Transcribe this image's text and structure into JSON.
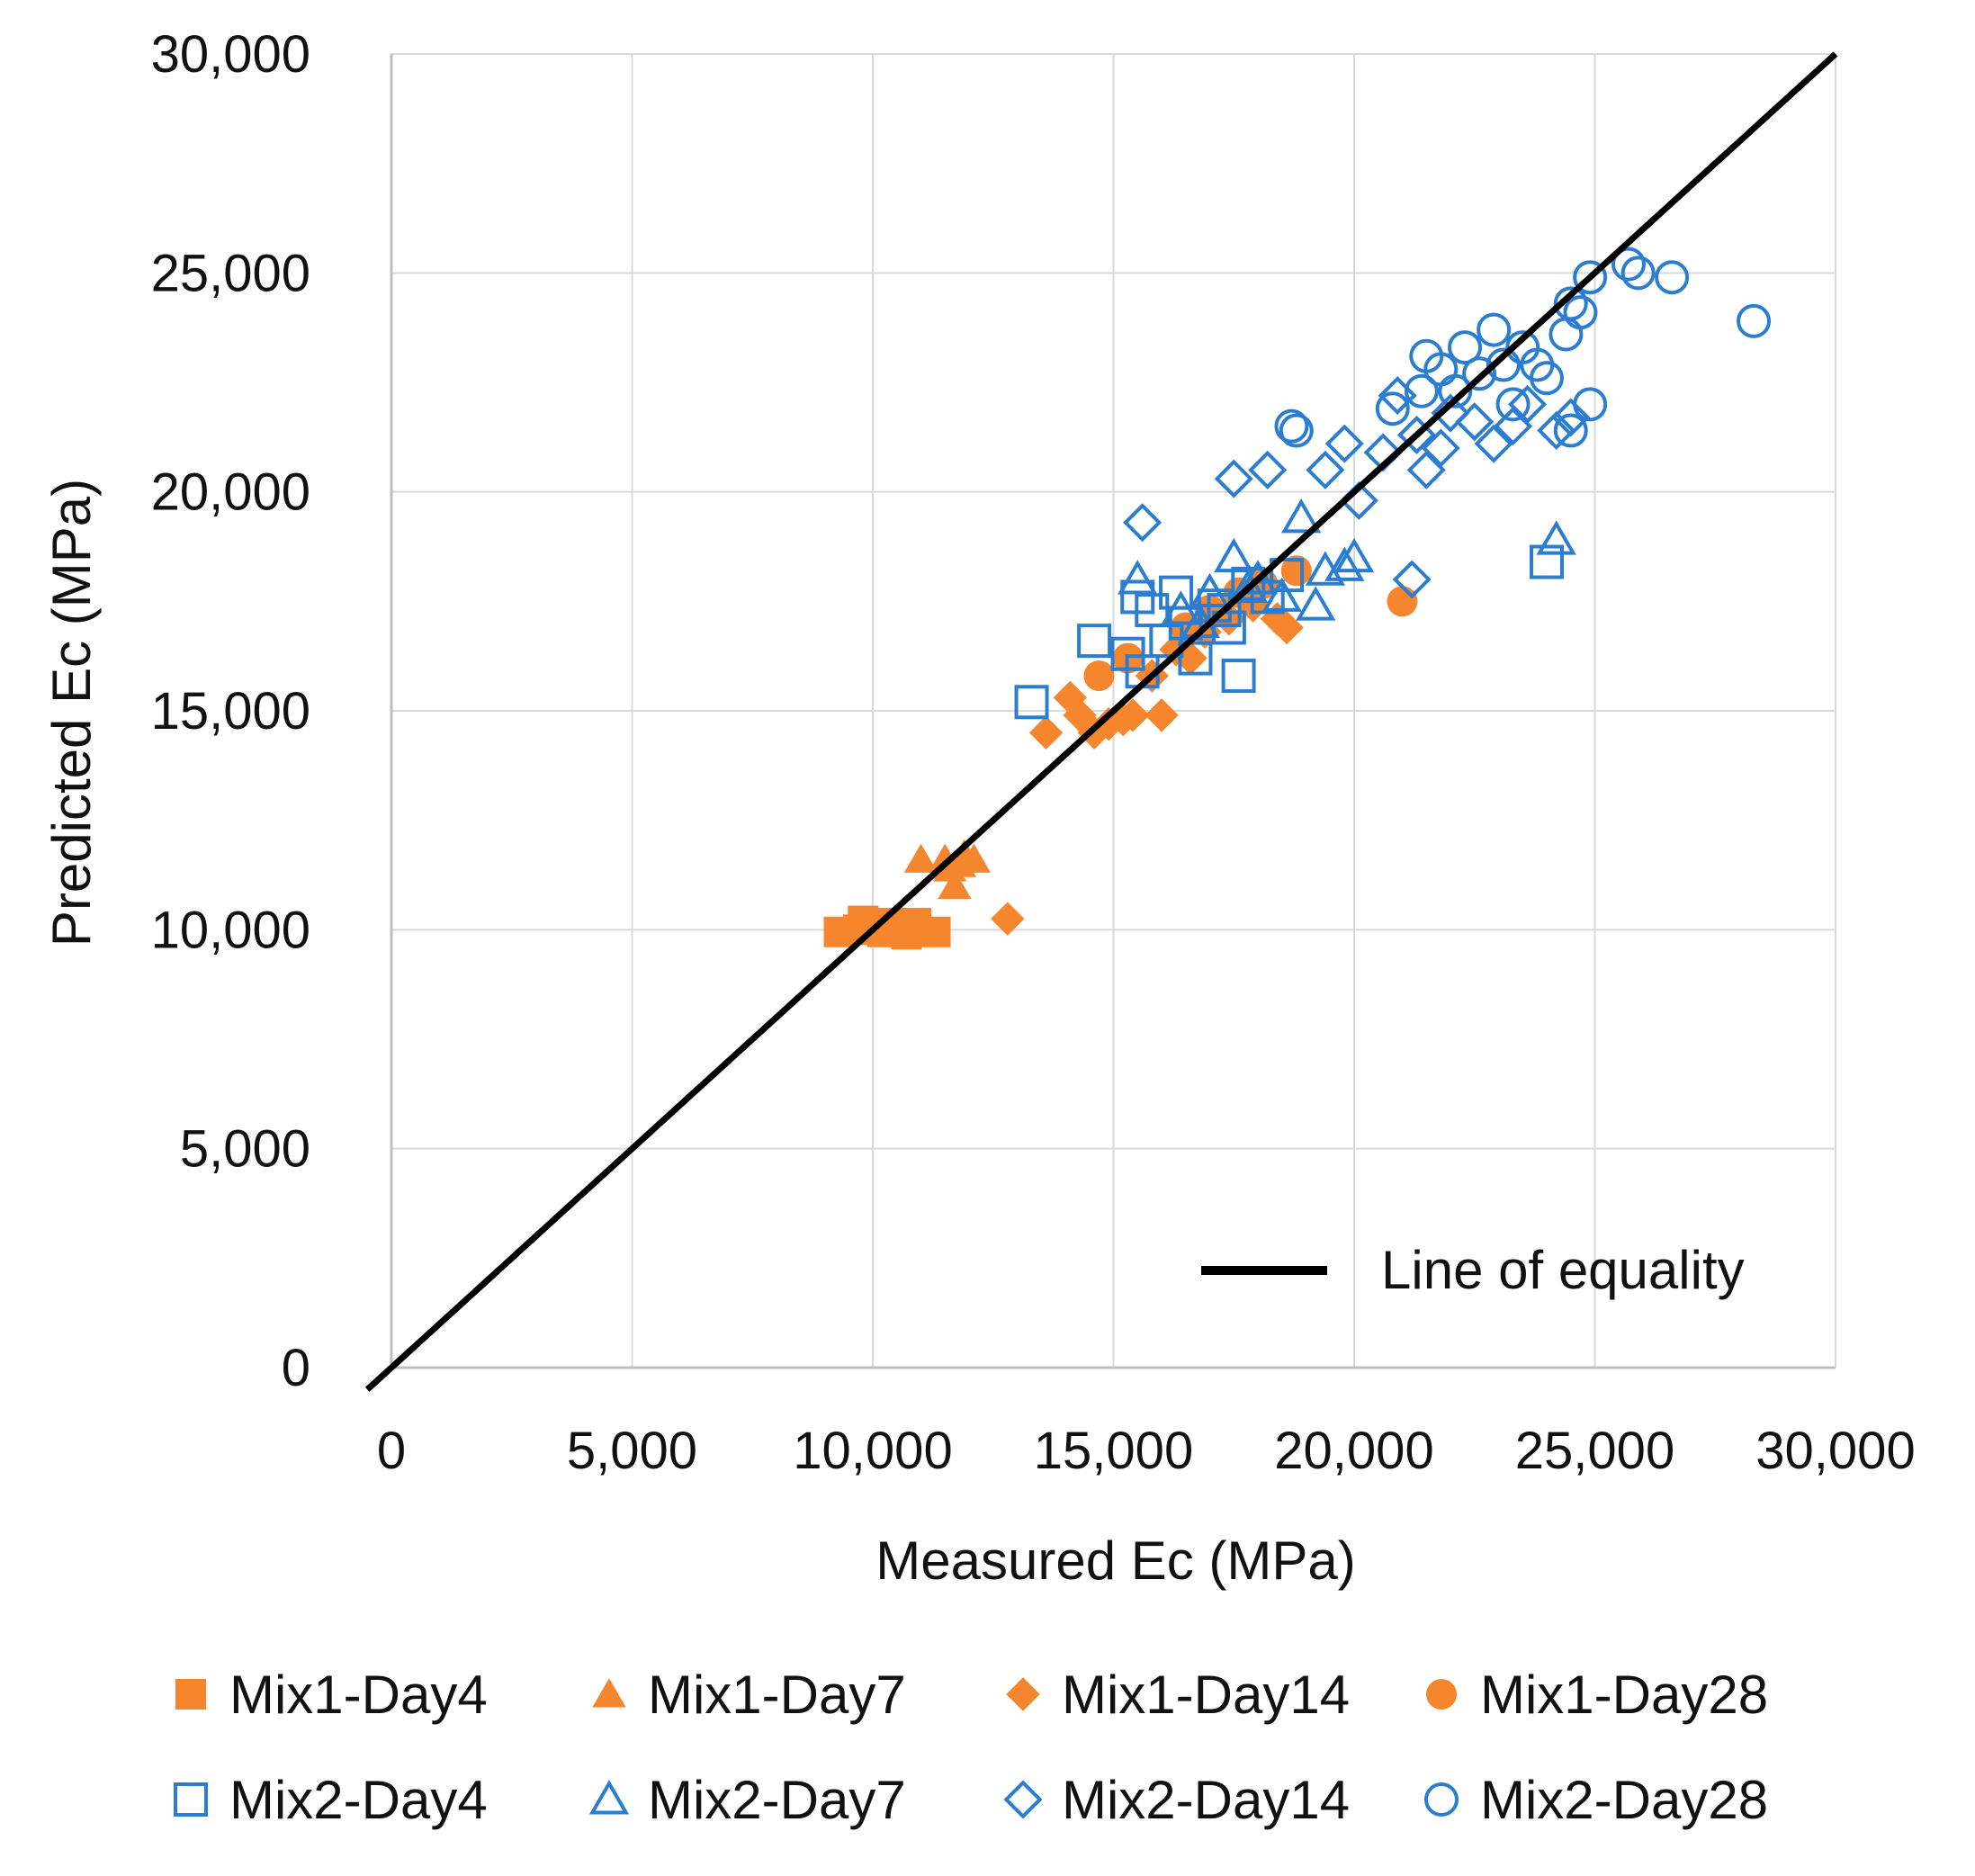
{
  "chart_data": {
    "type": "scatter",
    "title": "",
    "xlabel": "Measured Ec (MPa)",
    "ylabel": "Predicted Ec (MPa)",
    "xlim": [
      0,
      30000
    ],
    "ylim": [
      0,
      30000
    ],
    "xticks": [
      0,
      5000,
      10000,
      15000,
      20000,
      25000,
      30000
    ],
    "xtick_labels": [
      "0",
      "5,000",
      "10,000",
      "15,000",
      "20,000",
      "25,000",
      "30,000"
    ],
    "yticks": [
      0,
      5000,
      10000,
      15000,
      20000,
      25000,
      30000
    ],
    "ytick_labels": [
      "0",
      "5,000",
      "10,000",
      "15,000",
      "20,000",
      "25,000",
      "30,000"
    ],
    "grid": true,
    "legend_position": "bottom",
    "reference_line": {
      "name": "Line of equality",
      "x": [
        -500,
        30000
      ],
      "y": [
        -500,
        30000
      ],
      "color": "#000000"
    },
    "colors": {
      "mix1": "#F5862E",
      "mix2": "#2A7DD1",
      "line": "#000000",
      "grid": "#D9D9D9"
    },
    "series": [
      {
        "name": "Mix1-Day4",
        "marker": "square",
        "filled": true,
        "color": "#F5862E",
        "points": [
          [
            9300,
            9950
          ],
          [
            9700,
            10000
          ],
          [
            10000,
            10100
          ],
          [
            10200,
            9950
          ],
          [
            10400,
            10150
          ],
          [
            10600,
            10000
          ],
          [
            10900,
            10150
          ],
          [
            11300,
            9950
          ],
          [
            9800,
            10200
          ],
          [
            10700,
            9900
          ]
        ]
      },
      {
        "name": "Mix1-Day7",
        "marker": "triangle",
        "filled": true,
        "color": "#F5862E",
        "points": [
          [
            11000,
            11600
          ],
          [
            11500,
            11600
          ],
          [
            11800,
            11500
          ],
          [
            12100,
            11600
          ],
          [
            11700,
            11000
          ],
          [
            11600,
            11400
          ],
          [
            11900,
            11700
          ]
        ]
      },
      {
        "name": "Mix1-Day14",
        "marker": "diamond",
        "filled": true,
        "color": "#F5862E",
        "points": [
          [
            12800,
            10250
          ],
          [
            13600,
            14500
          ],
          [
            14100,
            15300
          ],
          [
            14300,
            14900
          ],
          [
            14600,
            14500
          ],
          [
            14900,
            14700
          ],
          [
            15200,
            14800
          ],
          [
            15400,
            14900
          ],
          [
            16000,
            14900
          ],
          [
            15800,
            15800
          ],
          [
            16300,
            16400
          ],
          [
            16900,
            16800
          ],
          [
            17400,
            17100
          ],
          [
            17900,
            17400
          ],
          [
            18400,
            17100
          ],
          [
            18600,
            16900
          ],
          [
            16600,
            16200
          ]
        ]
      },
      {
        "name": "Mix1-Day28",
        "marker": "circle",
        "filled": true,
        "color": "#F5862E",
        "points": [
          [
            14700,
            15800
          ],
          [
            15300,
            16200
          ],
          [
            16500,
            16900
          ],
          [
            17000,
            17300
          ],
          [
            17600,
            17700
          ],
          [
            18100,
            17900
          ],
          [
            18800,
            18200
          ],
          [
            21000,
            17500
          ]
        ]
      },
      {
        "name": "Mix2-Day4",
        "marker": "square",
        "filled": false,
        "color": "#2A7DD1",
        "points": [
          [
            13300,
            15200
          ],
          [
            14600,
            16600
          ],
          [
            15300,
            16300
          ],
          [
            15600,
            15900
          ],
          [
            15800,
            17300
          ],
          [
            16100,
            16600
          ],
          [
            16300,
            17700
          ],
          [
            16700,
            16200
          ],
          [
            17100,
            17400
          ],
          [
            17400,
            16900
          ],
          [
            17600,
            15800
          ],
          [
            17800,
            17900
          ],
          [
            18200,
            17600
          ],
          [
            18600,
            18100
          ],
          [
            24000,
            18400
          ],
          [
            15500,
            17600
          ],
          [
            16500,
            17000
          ],
          [
            17300,
            17300
          ]
        ]
      },
      {
        "name": "Mix2-Day7",
        "marker": "triangle",
        "filled": false,
        "color": "#2A7DD1",
        "points": [
          [
            15500,
            18000
          ],
          [
            16400,
            17300
          ],
          [
            17000,
            17700
          ],
          [
            17500,
            18500
          ],
          [
            18000,
            18000
          ],
          [
            18500,
            17600
          ],
          [
            18900,
            19400
          ],
          [
            19200,
            17400
          ],
          [
            19400,
            18200
          ],
          [
            19800,
            18300
          ],
          [
            20000,
            18500
          ],
          [
            24200,
            18900
          ],
          [
            16800,
            17000
          ],
          [
            17800,
            17800
          ]
        ]
      },
      {
        "name": "Mix2-Day14",
        "marker": "diamond",
        "filled": false,
        "color": "#2A7DD1",
        "points": [
          [
            15600,
            19300
          ],
          [
            17500,
            20300
          ],
          [
            18200,
            20500
          ],
          [
            19400,
            20500
          ],
          [
            19800,
            21100
          ],
          [
            20100,
            19800
          ],
          [
            20600,
            20900
          ],
          [
            21300,
            21300
          ],
          [
            21500,
            20500
          ],
          [
            21200,
            18000
          ],
          [
            21800,
            21000
          ],
          [
            22500,
            21600
          ],
          [
            22900,
            21100
          ],
          [
            23300,
            21500
          ],
          [
            23600,
            22000
          ],
          [
            24200,
            21400
          ],
          [
            24500,
            21700
          ],
          [
            22000,
            21800
          ],
          [
            20900,
            22200
          ]
        ]
      },
      {
        "name": "Mix2-Day28",
        "marker": "circle",
        "filled": false,
        "color": "#2A7DD1",
        "points": [
          [
            18700,
            21500
          ],
          [
            18800,
            21400
          ],
          [
            20800,
            21900
          ],
          [
            21400,
            22300
          ],
          [
            21500,
            23100
          ],
          [
            21800,
            22800
          ],
          [
            22100,
            22300
          ],
          [
            22300,
            23300
          ],
          [
            22600,
            22700
          ],
          [
            22900,
            23700
          ],
          [
            23100,
            22900
          ],
          [
            23500,
            23300
          ],
          [
            23800,
            22900
          ],
          [
            24000,
            22600
          ],
          [
            24500,
            24300
          ],
          [
            24400,
            23600
          ],
          [
            24700,
            24100
          ],
          [
            24900,
            24900
          ],
          [
            24500,
            21400
          ],
          [
            24900,
            22000
          ],
          [
            25700,
            25200
          ],
          [
            25900,
            25000
          ],
          [
            26600,
            24900
          ],
          [
            28300,
            23900
          ],
          [
            23300,
            22000
          ]
        ]
      }
    ]
  }
}
